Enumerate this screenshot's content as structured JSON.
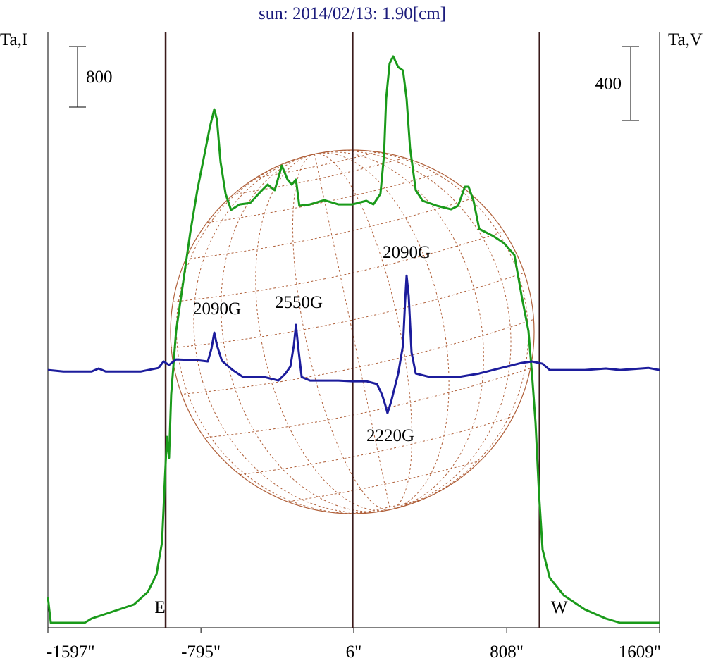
{
  "chart_data": {
    "type": "line",
    "title": "sun: 2014/02/13: 1.90[cm]",
    "ylabel": "Ta,I",
    "y2label": "Ta,V",
    "xlim": [
      -1597,
      1609
    ],
    "xticks": [
      {
        "value": -1597,
        "label": "-1597\""
      },
      {
        "value": -795,
        "label": "-795\""
      },
      {
        "value": 6,
        "label": "6\""
      },
      {
        "value": 808,
        "label": "808\""
      },
      {
        "value": 1609,
        "label": "1609\""
      }
    ],
    "ylim": [
      0,
      7870
    ],
    "y2lim": [
      -1394,
      1829
    ],
    "scale_bars": [
      {
        "value": 800,
        "axis": "y"
      },
      {
        "value": 400,
        "axis": "y2"
      }
    ],
    "markers": [
      {
        "x": -980,
        "label": "E"
      },
      {
        "x": 0
      },
      {
        "x": 980,
        "label": "W"
      }
    ],
    "annotations": [
      "2090G",
      "2550G",
      "2090G",
      "2220G"
    ],
    "series": [
      {
        "name": "I",
        "color": "#1a9a1a",
        "x": [
          -1597,
          -1582,
          -1405,
          -1368,
          -1257,
          -1146,
          -1073,
          -1028,
          -999,
          -984,
          -973,
          -962,
          -951,
          -925,
          -888,
          -851,
          -814,
          -777,
          -748,
          -725,
          -711,
          -692,
          -666,
          -637,
          -592,
          -537,
          -482,
          -445,
          -408,
          -371,
          -341,
          -319,
          -297,
          -279,
          -223,
          -149,
          -75,
          -1,
          72,
          109,
          146,
          165,
          176,
          194,
          213,
          239,
          264,
          283,
          301,
          331,
          368,
          442,
          516,
          553,
          589,
          608,
          634,
          664,
          737,
          793,
          848,
          886,
          922,
          940,
          959,
          977,
          996,
          1033,
          1107,
          1217,
          1328,
          1402,
          1609
        ],
        "values": [
          400,
          65,
          65,
          121,
          214,
          307,
          474,
          707,
          1126,
          1963,
          2521,
          2242,
          3079,
          3916,
          4567,
          5218,
          5777,
          6242,
          6614,
          6846,
          6707,
          6149,
          5730,
          5516,
          5590,
          5609,
          5758,
          5851,
          5777,
          6102,
          5916,
          5851,
          5916,
          5572,
          5590,
          5646,
          5590,
          5590,
          5637,
          5590,
          5730,
          6242,
          6986,
          7451,
          7544,
          7404,
          7358,
          6986,
          6335,
          5777,
          5637,
          5572,
          5525,
          5572,
          5823,
          5823,
          5637,
          5265,
          5172,
          5079,
          4921,
          4381,
          3916,
          3358,
          2707,
          1777,
          1033,
          660,
          428,
          242,
          121,
          65,
          65
        ]
      },
      {
        "name": "V",
        "color": "#1c1c9c",
        "axis": "y2",
        "x": [
          -1597,
          -1516,
          -1368,
          -1331,
          -1294,
          -1109,
          -1017,
          -991,
          -962,
          -925,
          -814,
          -759,
          -740,
          -725,
          -711,
          -685,
          -629,
          -574,
          -463,
          -389,
          -352,
          -326,
          -308,
          -297,
          -286,
          -267,
          -223,
          -75,
          -1,
          72,
          128,
          154,
          172,
          183,
          202,
          239,
          264,
          275,
          283,
          294,
          309,
          331,
          405,
          553,
          664,
          737,
          811,
          885,
          940,
          996,
          1033,
          1217,
          1328,
          1402,
          1550,
          1609
        ],
        "values": [
          0,
          -8,
          -8,
          8,
          -8,
          -8,
          11,
          46,
          27,
          57,
          53,
          46,
          114,
          202,
          133,
          50,
          0,
          -38,
          -38,
          -57,
          -19,
          19,
          133,
          244,
          133,
          -38,
          -57,
          -57,
          -61,
          -61,
          -76,
          -133,
          -191,
          -233,
          -171,
          -19,
          133,
          362,
          510,
          400,
          95,
          -19,
          -38,
          -38,
          -19,
          0,
          19,
          38,
          46,
          34,
          0,
          0,
          8,
          0,
          11,
          0
        ]
      }
    ]
  }
}
